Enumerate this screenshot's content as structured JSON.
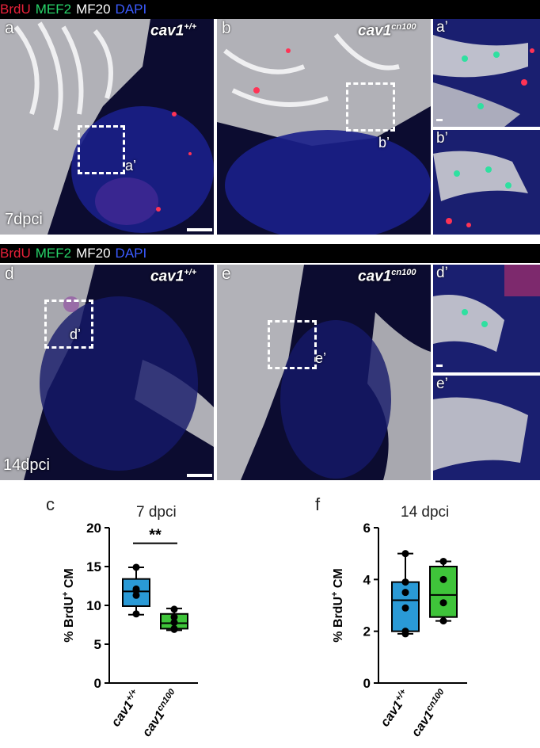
{
  "stain_header": {
    "brdu": "BrdU",
    "mef2": "MEF2",
    "mf20": "MF20",
    "dapi": "DAPI"
  },
  "panels": {
    "a": {
      "label": "a",
      "genotype_base": "cav1",
      "genotype_sup": "+/+",
      "timepoint": "7dpci",
      "box_label": "a’"
    },
    "b": {
      "label": "b",
      "genotype_base": "cav1",
      "genotype_sup": "cn100",
      "box_label": "b’"
    },
    "a_prime": {
      "label": "a’"
    },
    "b_prime": {
      "label": "b’"
    },
    "d": {
      "label": "d",
      "genotype_base": "cav1",
      "genotype_sup": "+/+",
      "timepoint": "14dpci",
      "box_label": "d’"
    },
    "e": {
      "label": "e",
      "genotype_base": "cav1",
      "genotype_sup": "cn100",
      "box_label": "e’"
    },
    "d_prime": {
      "label": "d’"
    },
    "e_prime": {
      "label": "e’"
    }
  },
  "colors": {
    "brdu": "#e8213a",
    "mef2": "#27d66a",
    "mf20": "#ffffff",
    "dapi": "#3b5bff",
    "wt_box": "#2a9ad6",
    "mut_box": "#3fc43a"
  },
  "chart_data": [
    {
      "panel_label": "c",
      "type": "box",
      "title": "7 dpci",
      "ylabel": "% BrdU⁺ CM",
      "ylabel_base": "% BrdU",
      "ylabel_sup": "+",
      "ylabel_tail": " CM",
      "ylim": [
        0,
        20
      ],
      "yticks": [
        "0",
        "5",
        "10",
        "15",
        "20"
      ],
      "significance": "**",
      "categories": [
        {
          "base": "cav1",
          "sup": "+/+"
        },
        {
          "base": "cav1",
          "sup": "cn100"
        }
      ],
      "series": [
        {
          "name": "cav1+/+",
          "min": 8.8,
          "q1": 9.9,
          "median": 11.8,
          "q3": 13.4,
          "max": 14.9,
          "points": [
            8.9,
            11.3,
            11.9,
            12.1,
            14.9
          ]
        },
        {
          "name": "cav1cn100",
          "min": 6.8,
          "q1": 7.0,
          "median": 7.7,
          "q3": 8.9,
          "max": 9.6,
          "points": [
            6.9,
            7.0,
            7.8,
            8.5,
            9.5
          ]
        }
      ]
    },
    {
      "panel_label": "f",
      "type": "box",
      "title": "14 dpci",
      "ylabel": "% BrdU⁺ CM",
      "ylabel_base": "% BrdU",
      "ylabel_sup": "+",
      "ylabel_tail": " CM",
      "ylim": [
        0,
        6
      ],
      "yticks": [
        "0",
        "2",
        "4",
        "6"
      ],
      "categories": [
        {
          "base": "cav1",
          "sup": "+/+"
        },
        {
          "base": "cav1",
          "sup": "cn100"
        }
      ],
      "series": [
        {
          "name": "cav1+/+",
          "min": 1.9,
          "q1": 2.0,
          "median": 3.2,
          "q3": 3.9,
          "max": 5.0,
          "points": [
            1.9,
            2.0,
            2.9,
            3.5,
            3.9,
            5.0
          ]
        },
        {
          "name": "cav1cn100",
          "min": 2.4,
          "q1": 2.55,
          "median": 3.4,
          "q3": 4.5,
          "max": 4.7,
          "points": [
            2.4,
            3.1,
            4.0,
            4.7
          ]
        }
      ]
    }
  ]
}
